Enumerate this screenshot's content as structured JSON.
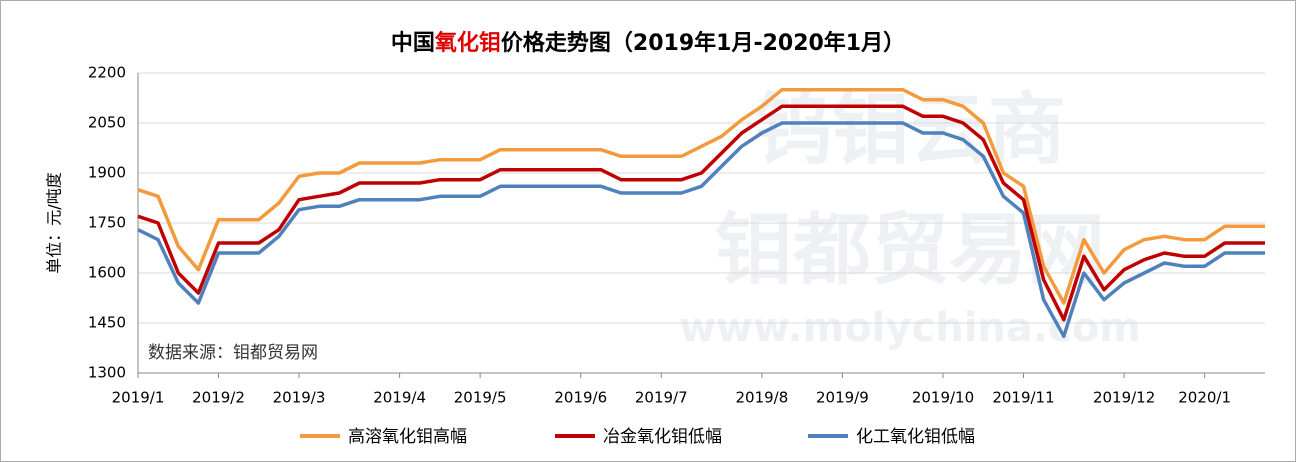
{
  "chart_data": {
    "type": "line",
    "title": [
      "中国",
      "氧化钼",
      "价格走势图（2019年1月-2020年1月）"
    ],
    "title_colors": [
      "#000000",
      "#e00000",
      "#000000"
    ],
    "y_label": "单位：元/吨度",
    "source": "数据来源：钼都贸易网",
    "watermark": [
      "钨钼云商",
      "钼都贸易网",
      "www.molychina.com"
    ],
    "categories": [
      "2019/1",
      null,
      null,
      null,
      "2019/2",
      null,
      null,
      null,
      "2019/3",
      null,
      null,
      null,
      null,
      "2019/4",
      null,
      null,
      null,
      "2019/5",
      null,
      null,
      null,
      null,
      "2019/6",
      null,
      null,
      null,
      "2019/7",
      null,
      null,
      null,
      null,
      "2019/8",
      null,
      null,
      null,
      "2019/9",
      null,
      null,
      null,
      null,
      "2019/10",
      null,
      null,
      null,
      "2019/11",
      null,
      null,
      null,
      null,
      "2019/12",
      null,
      null,
      null,
      "2020/1",
      null,
      null,
      null
    ],
    "series": [
      {
        "name": "高溶氧化钼高幅",
        "color": "#f39a3c",
        "values": [
          1850,
          1830,
          1680,
          1610,
          1760,
          1760,
          1760,
          1810,
          1890,
          1900,
          1900,
          1930,
          1930,
          1930,
          1930,
          1940,
          1940,
          1940,
          1970,
          1970,
          1970,
          1970,
          1970,
          1970,
          1950,
          1950,
          1950,
          1950,
          1980,
          2010,
          2060,
          2100,
          2150,
          2150,
          2150,
          2150,
          2150,
          2150,
          2150,
          2120,
          2120,
          2100,
          2050,
          1900,
          1860,
          1620,
          1510,
          1700,
          1600,
          1670,
          1700,
          1710,
          1700,
          1700,
          1740,
          1740,
          1740
        ]
      },
      {
        "name": "冶金氧化钼低幅",
        "color": "#c00000",
        "values": [
          1770,
          1750,
          1600,
          1540,
          1690,
          1690,
          1690,
          1730,
          1820,
          1830,
          1840,
          1870,
          1870,
          1870,
          1870,
          1880,
          1880,
          1880,
          1910,
          1910,
          1910,
          1910,
          1910,
          1910,
          1880,
          1880,
          1880,
          1880,
          1900,
          1960,
          2020,
          2060,
          2100,
          2100,
          2100,
          2100,
          2100,
          2100,
          2100,
          2070,
          2070,
          2050,
          2000,
          1870,
          1820,
          1580,
          1460,
          1650,
          1550,
          1610,
          1640,
          1660,
          1650,
          1650,
          1690,
          1690,
          1690
        ]
      },
      {
        "name": "化工氧化钼低幅",
        "color": "#4f81bd",
        "values": [
          1730,
          1700,
          1570,
          1510,
          1660,
          1660,
          1660,
          1710,
          1790,
          1800,
          1800,
          1820,
          1820,
          1820,
          1820,
          1830,
          1830,
          1830,
          1860,
          1860,
          1860,
          1860,
          1860,
          1860,
          1840,
          1840,
          1840,
          1840,
          1860,
          1920,
          1980,
          2020,
          2050,
          2050,
          2050,
          2050,
          2050,
          2050,
          2050,
          2020,
          2020,
          2000,
          1950,
          1830,
          1780,
          1520,
          1410,
          1600,
          1520,
          1570,
          1600,
          1630,
          1620,
          1620,
          1660,
          1660,
          1660
        ]
      }
    ],
    "ylim": [
      1300,
      2200
    ],
    "yticks": [
      1300,
      1450,
      1600,
      1750,
      1900,
      2050,
      2200
    ],
    "grid": true,
    "legend": "bottom"
  }
}
